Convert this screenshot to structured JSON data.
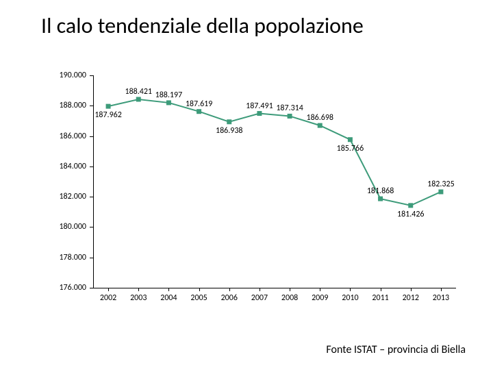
{
  "title": "Il calo tendenziale della popolazione",
  "source": "Fonte ISTAT – provincia di Biella",
  "chart": {
    "type": "line",
    "line_color": "#3d9b7a",
    "marker_color": "#3d9b7a",
    "marker_shape": "square",
    "marker_size": 7,
    "line_width": 2,
    "background_color": "#ffffff",
    "ylim": [
      176000,
      190000
    ],
    "ytick_step": 2000,
    "y_labels": [
      "176.000",
      "178.000",
      "180.000",
      "182.000",
      "184.000",
      "186.000",
      "188.000",
      "190.000"
    ],
    "x_labels": [
      "2002",
      "2003",
      "2004",
      "2005",
      "2006",
      "2007",
      "2008",
      "2009",
      "2010",
      "2011",
      "2012",
      "2013"
    ],
    "values": [
      187962,
      188421,
      188197,
      187619,
      186938,
      187491,
      187314,
      186698,
      185766,
      181868,
      181426,
      182325
    ],
    "value_labels": [
      "187.962",
      "188.421",
      "188.197",
      "187.619",
      "186.938",
      "187.491",
      "187.314",
      "186.698",
      "185.766",
      "181.868",
      "181.426",
      "182.325"
    ],
    "label_positions": [
      "below",
      "above",
      "above",
      "above",
      "below",
      "above",
      "above",
      "above",
      "below",
      "above",
      "below",
      "above"
    ],
    "axis_color": "#000000",
    "label_fontsize": 12,
    "title_fontsize": 32
  }
}
